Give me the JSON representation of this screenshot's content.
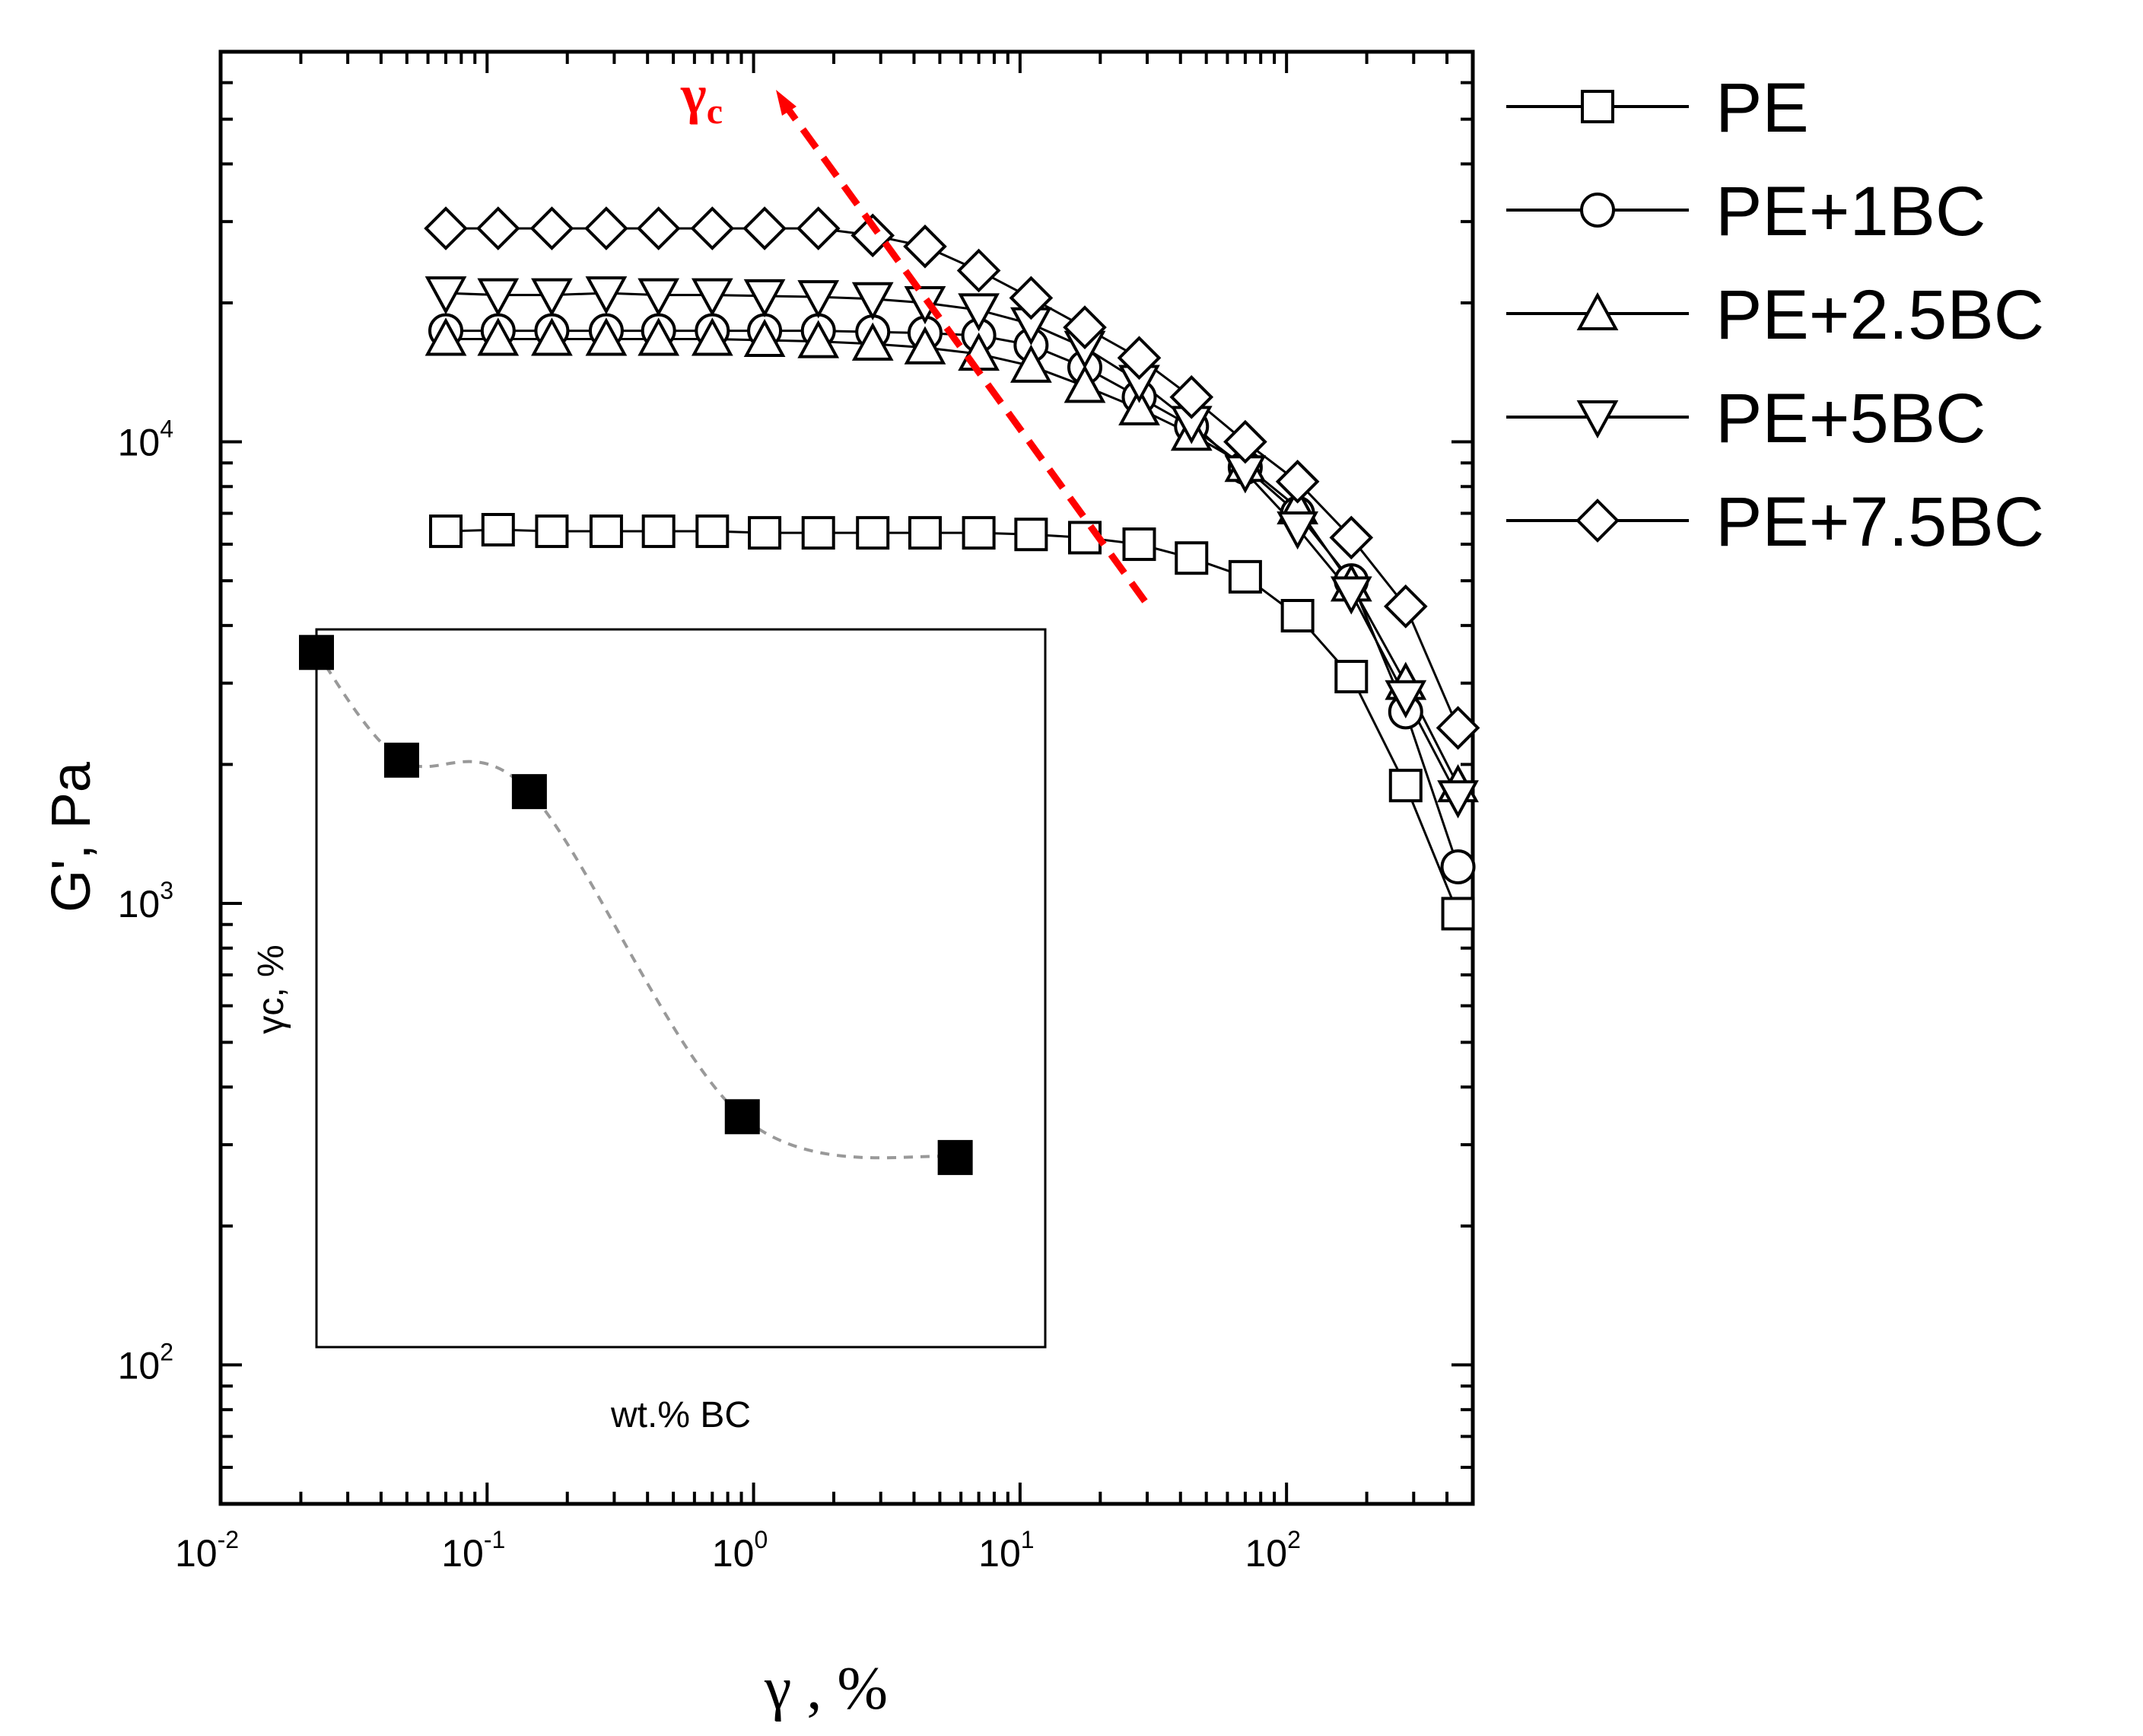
{
  "chart_data": [
    {
      "type": "scatter",
      "subtype": "line-with-markers",
      "title": "",
      "xscale": "log",
      "yscale": "log",
      "xlabel": "γ , %",
      "ylabel": "G', Pa",
      "xlim": [
        0.01,
        500
      ],
      "ylim": [
        50,
        70000
      ],
      "x_ticks": [
        {
          "value": 0.01,
          "base": "10",
          "exp": "-2"
        },
        {
          "value": 0.1,
          "base": "10",
          "exp": "-1"
        },
        {
          "value": 1,
          "base": "10",
          "exp": "0"
        },
        {
          "value": 10,
          "base": "10",
          "exp": "1"
        },
        {
          "value": 100,
          "base": "10",
          "exp": "2"
        }
      ],
      "y_ticks": [
        {
          "value": 100,
          "base": "10",
          "exp": "2"
        },
        {
          "value": 1000,
          "base": "10",
          "exp": "3"
        },
        {
          "value": 10000,
          "base": "10",
          "exp": "4"
        }
      ],
      "annotation": {
        "text": "γ",
        "subscript": "c",
        "color": "#ff0000",
        "arrow_from": [
          30,
          4000
        ],
        "arrow_to": [
          1.1,
          55000
        ]
      },
      "legend_position": "right-outside",
      "x": [
        0.07,
        0.11,
        0.175,
        0.28,
        0.44,
        0.7,
        1.1,
        1.75,
        2.8,
        4.4,
        7.0,
        11,
        17.5,
        28,
        44,
        70,
        110,
        175,
        280,
        440
      ],
      "series": [
        {
          "name": "PE",
          "marker": "square",
          "values": [
            6400,
            6450,
            6400,
            6400,
            6400,
            6400,
            6350,
            6350,
            6350,
            6350,
            6350,
            6300,
            6200,
            6000,
            5600,
            5100,
            4200,
            3100,
            1800,
            950
          ]
        },
        {
          "name": "PE+1BC",
          "marker": "circle",
          "values": [
            17400,
            17400,
            17400,
            17400,
            17400,
            17400,
            17400,
            17400,
            17300,
            17200,
            17000,
            16200,
            14500,
            12500,
            10800,
            8800,
            7000,
            5000,
            2600,
            1200
          ]
        },
        {
          "name": "PE+2.5BC",
          "marker": "triangle-up",
          "values": [
            16700,
            16700,
            16700,
            16700,
            16700,
            16700,
            16600,
            16500,
            16300,
            16000,
            15500,
            14600,
            13200,
            11800,
            10400,
            8900,
            7200,
            4900,
            3000,
            1800
          ]
        },
        {
          "name": "PE+5BC",
          "marker": "triangle-down",
          "values": [
            21000,
            20800,
            20800,
            21000,
            20800,
            20800,
            20700,
            20600,
            20400,
            20000,
            19300,
            18000,
            16000,
            13500,
            11000,
            8600,
            6500,
            4700,
            2800,
            1700
          ]
        },
        {
          "name": "PE+7.5BC",
          "marker": "diamond",
          "values": [
            29000,
            29000,
            29000,
            29000,
            29000,
            29000,
            29000,
            29000,
            28000,
            26500,
            23500,
            20500,
            17700,
            15200,
            12500,
            10000,
            8200,
            6200,
            4400,
            2400
          ]
        }
      ]
    },
    {
      "type": "scatter",
      "subtype": "inset",
      "title": "",
      "xlabel": "wt.% BC",
      "ylabel": "γc, %",
      "x": [
        0,
        1,
        2.5,
        5,
        7.5
      ],
      "series": [
        {
          "name": "γc",
          "marker": "filled-square",
          "values": [
            2.8,
            1.5,
            1.25,
            0.19,
            0.15
          ]
        }
      ],
      "ylim": [
        0.05,
        3.2
      ],
      "fit_line": "dashed gray smooth curve"
    }
  ],
  "colors": {
    "axis": "#000000",
    "marker_fill": "#ffffff",
    "annotation": "#ff0000",
    "inset_fit": "#999999",
    "inset_marker": "#000000"
  }
}
